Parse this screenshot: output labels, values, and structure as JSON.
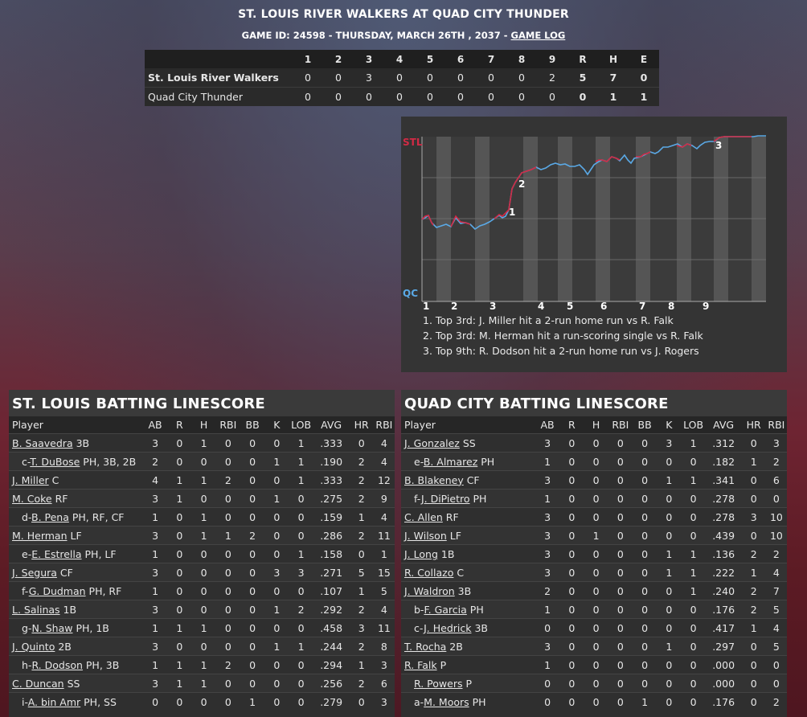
{
  "header": {
    "title": "ST. LOUIS RIVER WALKERS AT QUAD CITY THUNDER",
    "subtitle": "GAME ID: 24598 - THURSDAY, MARCH 26TH , 2037 - ",
    "game_log": "GAME LOG"
  },
  "linescore": {
    "innings": [
      "1",
      "2",
      "3",
      "4",
      "5",
      "6",
      "7",
      "8",
      "9"
    ],
    "totals_headers": [
      "R",
      "H",
      "E"
    ],
    "teams": [
      {
        "name": "St. Louis River Walkers",
        "innings": [
          "0",
          "0",
          "3",
          "0",
          "0",
          "0",
          "0",
          "0",
          "2"
        ],
        "totals": [
          "5",
          "7",
          "0"
        ]
      },
      {
        "name": "Quad City Thunder",
        "innings": [
          "0",
          "0",
          "0",
          "0",
          "0",
          "0",
          "0",
          "0",
          "0"
        ],
        "totals": [
          "0",
          "1",
          "1"
        ]
      }
    ]
  },
  "win_prob": {
    "team_top": "STL",
    "team_bottom": "QC",
    "colors": {
      "stl": "#d22a45",
      "qc": "#5aa9e6"
    },
    "inning_labels": [
      "1",
      "2",
      "3",
      "4",
      "5",
      "6",
      "7",
      "8",
      "9"
    ],
    "markers": [
      "1",
      "2",
      "3"
    ],
    "notes": [
      "1. Top 3rd: J. Miller hit a 2-run home run vs R. Falk",
      "2. Top 3rd: M. Herman hit a run-scoring single vs R. Falk",
      "3. Top 9th: R. Dodson hit a 2-run home run vs J. Rogers"
    ]
  },
  "batting_columns": [
    "Player",
    "AB",
    "R",
    "H",
    "RBI",
    "BB",
    "K",
    "LOB",
    "AVG",
    "HR",
    "RBI"
  ],
  "stl_batting": {
    "title": "ST. LOUIS BATTING LINESCORE",
    "rows": [
      {
        "prefix": "",
        "name": "B. Saavedra",
        "pos": " 3B",
        "sub": false,
        "stats": [
          "3",
          "0",
          "1",
          "0",
          "0",
          "0",
          "1",
          ".333",
          "0",
          "4"
        ]
      },
      {
        "prefix": "c-",
        "name": "T. DuBose",
        "pos": " PH, 3B, 2B",
        "sub": true,
        "stats": [
          "2",
          "0",
          "0",
          "0",
          "0",
          "1",
          "1",
          ".190",
          "2",
          "4"
        ]
      },
      {
        "prefix": "",
        "name": "J. Miller",
        "pos": " C",
        "sub": false,
        "stats": [
          "4",
          "1",
          "1",
          "2",
          "0",
          "0",
          "1",
          ".333",
          "2",
          "12"
        ]
      },
      {
        "prefix": "",
        "name": "M. Coke",
        "pos": " RF",
        "sub": false,
        "stats": [
          "3",
          "1",
          "0",
          "0",
          "0",
          "1",
          "0",
          ".275",
          "2",
          "9"
        ]
      },
      {
        "prefix": "d-",
        "name": "B. Pena",
        "pos": " PH, RF, CF",
        "sub": true,
        "stats": [
          "1",
          "0",
          "1",
          "0",
          "0",
          "0",
          "0",
          ".159",
          "1",
          "4"
        ]
      },
      {
        "prefix": "",
        "name": "M. Herman",
        "pos": " LF",
        "sub": false,
        "stats": [
          "3",
          "0",
          "1",
          "1",
          "2",
          "0",
          "0",
          ".286",
          "2",
          "11"
        ]
      },
      {
        "prefix": "e-",
        "name": "E. Estrella",
        "pos": " PH, LF",
        "sub": true,
        "stats": [
          "1",
          "0",
          "0",
          "0",
          "0",
          "0",
          "1",
          ".158",
          "0",
          "1"
        ]
      },
      {
        "prefix": "",
        "name": "J. Segura",
        "pos": " CF",
        "sub": false,
        "stats": [
          "3",
          "0",
          "0",
          "0",
          "0",
          "3",
          "3",
          ".271",
          "5",
          "15"
        ]
      },
      {
        "prefix": "f-",
        "name": "G. Dudman",
        "pos": " PH, RF",
        "sub": true,
        "stats": [
          "1",
          "0",
          "0",
          "0",
          "0",
          "0",
          "0",
          ".107",
          "1",
          "5"
        ]
      },
      {
        "prefix": "",
        "name": "L. Salinas",
        "pos": " 1B",
        "sub": false,
        "stats": [
          "3",
          "0",
          "0",
          "0",
          "0",
          "1",
          "2",
          ".292",
          "2",
          "4"
        ]
      },
      {
        "prefix": "g-",
        "name": "N. Shaw",
        "pos": " PH, 1B",
        "sub": true,
        "stats": [
          "1",
          "1",
          "1",
          "0",
          "0",
          "0",
          "0",
          ".458",
          "3",
          "11"
        ]
      },
      {
        "prefix": "",
        "name": "J. Quinto",
        "pos": " 2B",
        "sub": false,
        "stats": [
          "3",
          "0",
          "0",
          "0",
          "0",
          "1",
          "1",
          ".244",
          "2",
          "8"
        ]
      },
      {
        "prefix": "h-",
        "name": "R. Dodson",
        "pos": " PH, 3B",
        "sub": true,
        "stats": [
          "1",
          "1",
          "1",
          "2",
          "0",
          "0",
          "0",
          ".294",
          "1",
          "3"
        ]
      },
      {
        "prefix": "",
        "name": "C. Duncan",
        "pos": " SS",
        "sub": false,
        "stats": [
          "3",
          "1",
          "1",
          "0",
          "0",
          "0",
          "0",
          ".256",
          "2",
          "6"
        ]
      },
      {
        "prefix": "i-",
        "name": "A. bin Amr",
        "pos": " PH, SS",
        "sub": true,
        "stats": [
          "0",
          "0",
          "0",
          "0",
          "1",
          "0",
          "0",
          ".279",
          "0",
          "3"
        ]
      }
    ]
  },
  "qc_batting": {
    "title": "QUAD CITY BATTING LINESCORE",
    "rows": [
      {
        "prefix": "",
        "name": "J. Gonzalez",
        "pos": " SS",
        "sub": false,
        "stats": [
          "3",
          "0",
          "0",
          "0",
          "0",
          "3",
          "1",
          ".312",
          "0",
          "3"
        ]
      },
      {
        "prefix": "e-",
        "name": "B. Almarez",
        "pos": " PH",
        "sub": true,
        "stats": [
          "1",
          "0",
          "0",
          "0",
          "0",
          "0",
          "0",
          ".182",
          "1",
          "2"
        ]
      },
      {
        "prefix": "",
        "name": "B. Blakeney",
        "pos": " CF",
        "sub": false,
        "stats": [
          "3",
          "0",
          "0",
          "0",
          "0",
          "1",
          "1",
          ".341",
          "0",
          "6"
        ]
      },
      {
        "prefix": "f-",
        "name": "J. DiPietro",
        "pos": " PH",
        "sub": true,
        "stats": [
          "1",
          "0",
          "0",
          "0",
          "0",
          "0",
          "0",
          ".278",
          "0",
          "0"
        ]
      },
      {
        "prefix": "",
        "name": "C. Allen",
        "pos": " RF",
        "sub": false,
        "stats": [
          "3",
          "0",
          "0",
          "0",
          "0",
          "0",
          "0",
          ".278",
          "3",
          "10"
        ]
      },
      {
        "prefix": "",
        "name": "J. Wilson",
        "pos": " LF",
        "sub": false,
        "stats": [
          "3",
          "0",
          "1",
          "0",
          "0",
          "0",
          "0",
          ".439",
          "0",
          "10"
        ]
      },
      {
        "prefix": "",
        "name": "J. Long",
        "pos": " 1B",
        "sub": false,
        "stats": [
          "3",
          "0",
          "0",
          "0",
          "0",
          "1",
          "1",
          ".136",
          "2",
          "2"
        ]
      },
      {
        "prefix": "",
        "name": "R. Collazo",
        "pos": " C",
        "sub": false,
        "stats": [
          "3",
          "0",
          "0",
          "0",
          "0",
          "1",
          "1",
          ".222",
          "1",
          "4"
        ]
      },
      {
        "prefix": "",
        "name": "J. Waldron",
        "pos": " 3B",
        "sub": false,
        "stats": [
          "2",
          "0",
          "0",
          "0",
          "0",
          "0",
          "1",
          ".240",
          "2",
          "7"
        ]
      },
      {
        "prefix": "b-",
        "name": "F. Garcia",
        "pos": " PH",
        "sub": true,
        "stats": [
          "1",
          "0",
          "0",
          "0",
          "0",
          "0",
          "0",
          ".176",
          "2",
          "5"
        ]
      },
      {
        "prefix": "c-",
        "name": "J. Hedrick",
        "pos": " 3B",
        "sub": true,
        "stats": [
          "0",
          "0",
          "0",
          "0",
          "0",
          "0",
          "0",
          ".417",
          "1",
          "4"
        ]
      },
      {
        "prefix": "",
        "name": "T. Rocha",
        "pos": " 2B",
        "sub": false,
        "stats": [
          "3",
          "0",
          "0",
          "0",
          "0",
          "1",
          "0",
          ".297",
          "0",
          "5"
        ]
      },
      {
        "prefix": "",
        "name": "R. Falk",
        "pos": " P",
        "sub": false,
        "stats": [
          "1",
          "0",
          "0",
          "0",
          "0",
          "0",
          "0",
          ".000",
          "0",
          "0"
        ]
      },
      {
        "prefix": "",
        "name": "R. Powers",
        "pos": " P",
        "sub": true,
        "stats": [
          "0",
          "0",
          "0",
          "0",
          "0",
          "0",
          "0",
          ".000",
          "0",
          "0"
        ]
      },
      {
        "prefix": "a-",
        "name": "M. Moors",
        "pos": " PH",
        "sub": true,
        "stats": [
          "0",
          "0",
          "0",
          "0",
          "1",
          "0",
          "0",
          ".176",
          "0",
          "2"
        ]
      }
    ]
  }
}
